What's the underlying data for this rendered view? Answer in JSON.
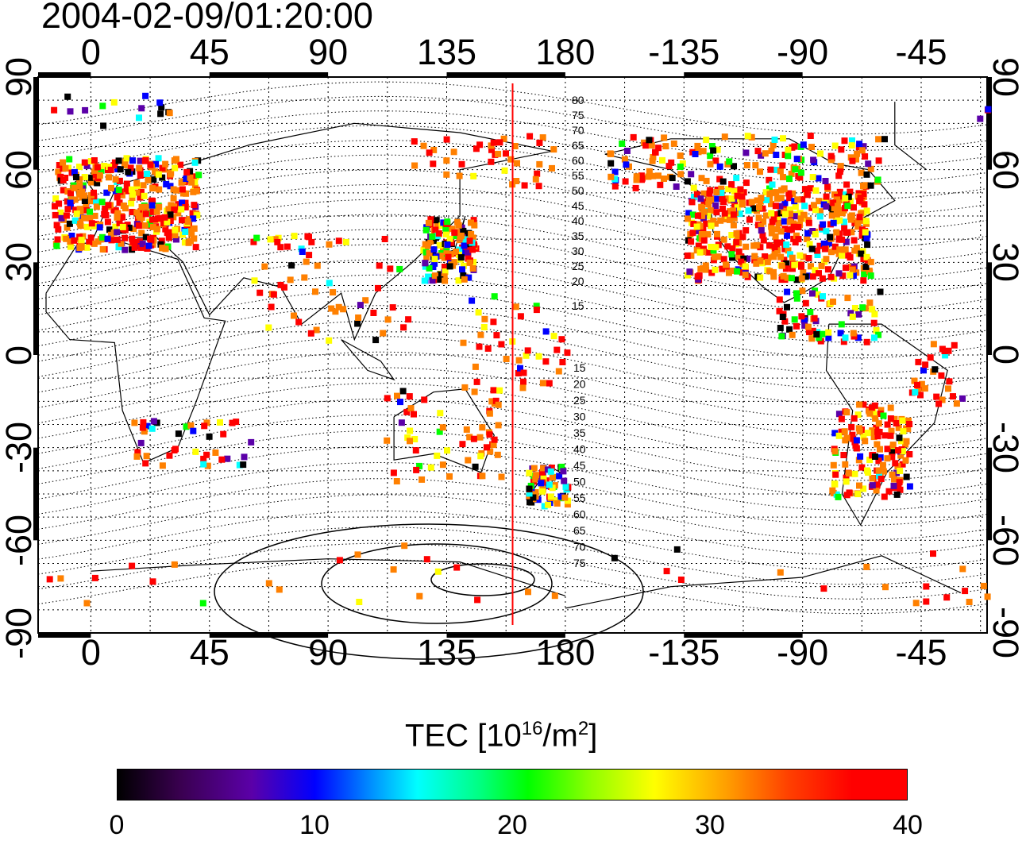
{
  "timestamp": "2004-02-09/01:20:00",
  "map": {
    "projection": "equirectangular",
    "lon_center": 160,
    "lat_range": [
      -90,
      90
    ],
    "lon_ticks": [
      "0",
      "45",
      "90",
      "135",
      "180",
      "-135",
      "-90",
      "-45"
    ],
    "lat_ticks": [
      "90",
      "60",
      "30",
      "0",
      "-30",
      "-60",
      "-90"
    ],
    "meridian_marker_lon": 160,
    "contour_labels_north": [
      "80",
      "75",
      "70",
      "65",
      "60",
      "55",
      "50",
      "45",
      "40",
      "35",
      "30",
      "25",
      "20",
      "15"
    ],
    "contour_labels_south": [
      "15",
      "20",
      "25",
      "30",
      "35",
      "40",
      "45",
      "50",
      "55",
      "60",
      "65",
      "70",
      "75"
    ]
  },
  "colorbar": {
    "title": "TEC  [10",
    "title_sup1": "16",
    "title_mid": "/m",
    "title_sup2": "2",
    "title_end": "]",
    "ticks": [
      "0",
      "10",
      "20",
      "30",
      "40"
    ],
    "min": 0,
    "max": 40,
    "colors": [
      "#000000",
      "#5b00a8",
      "#0000ff",
      "#00ffff",
      "#00ff00",
      "#ffff00",
      "#ff8000",
      "#ff0000"
    ]
  }
}
